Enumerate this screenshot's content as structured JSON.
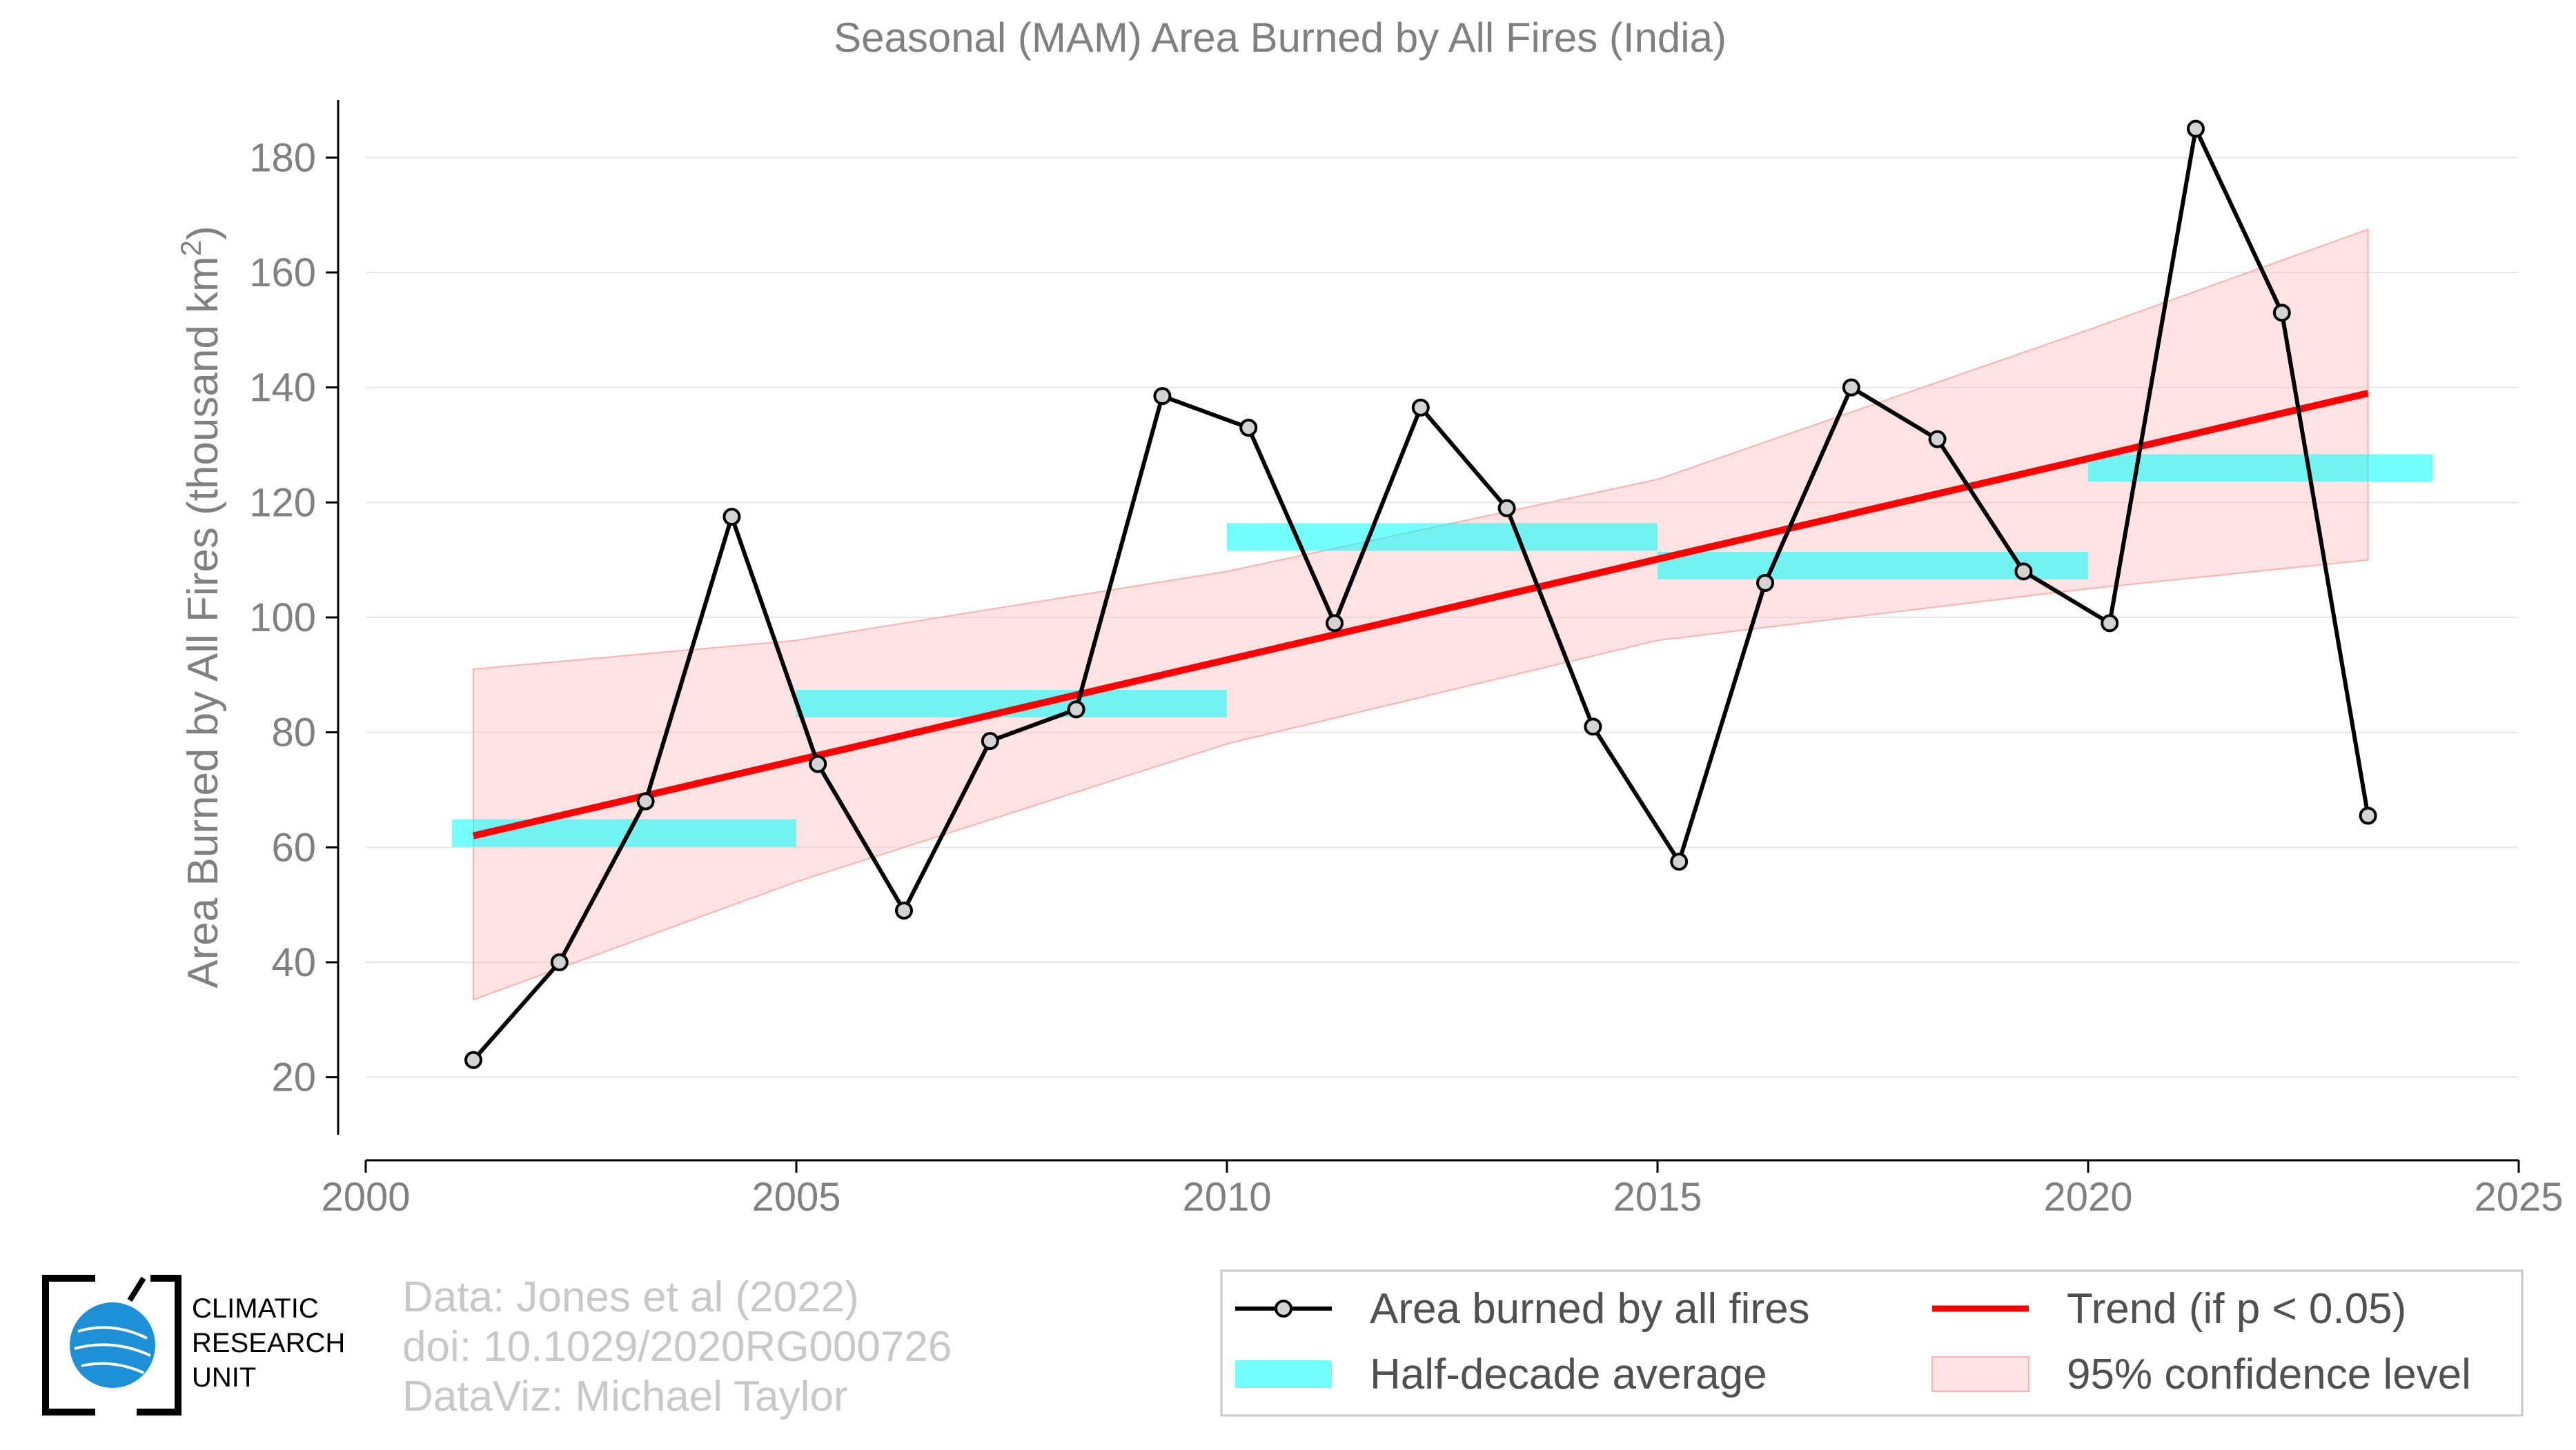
{
  "chart_data": {
    "type": "line",
    "title": "Seasonal (MAM) Area Burned by All Fires (India)",
    "ylabel_main": "Area Burned by All Fires (thousand km",
    "ylabel_sup": "2",
    "ylabel_end": ")",
    "xlim": [
      2000,
      2025
    ],
    "ylim": [
      10,
      190
    ],
    "x_ticks": [
      "2000",
      "2005",
      "2010",
      "2015",
      "2020",
      "2025"
    ],
    "y_ticks": [
      "20",
      "40",
      "60",
      "80",
      "100",
      "120",
      "140",
      "160",
      "180"
    ],
    "grid": true,
    "series": [
      {
        "name": "Area burned by all fires",
        "x": [
          2001.25,
          2002.25,
          2003.25,
          2004.25,
          2005.25,
          2006.25,
          2007.25,
          2008.25,
          2009.25,
          2010.25,
          2011.25,
          2012.25,
          2013.25,
          2014.25,
          2015.25,
          2016.25,
          2017.25,
          2018.25,
          2019.25,
          2020.25,
          2021.25,
          2022.25,
          2023.25
        ],
        "values": [
          23,
          40,
          68,
          117.5,
          74.5,
          49,
          78.5,
          84,
          138.5,
          133,
          99,
          136.5,
          119,
          81,
          57.5,
          106,
          140,
          131,
          108,
          99,
          185,
          153,
          65.5
        ]
      }
    ],
    "half_decade_average": {
      "name": "Half-decade average",
      "segments": [
        {
          "x0": 2001,
          "x1": 2005,
          "value": 62.5
        },
        {
          "x0": 2005,
          "x1": 2010,
          "value": 85
        },
        {
          "x0": 2010,
          "x1": 2015,
          "value": 114
        },
        {
          "x0": 2015,
          "x1": 2020,
          "value": 109
        },
        {
          "x0": 2020,
          "x1": 2024,
          "value": 126
        }
      ]
    },
    "trend": {
      "name": "Trend (if p < 0.05)",
      "x": [
        2001.25,
        2023.25
      ],
      "values": [
        62,
        139
      ]
    },
    "confidence": {
      "name": "95% confidence level",
      "x": [
        2001.25,
        2005,
        2010,
        2015,
        2020,
        2023.25
      ],
      "upper": [
        91,
        96,
        108,
        124,
        150,
        167.5
      ],
      "lower": [
        33.5,
        54,
        78,
        96,
        105,
        110
      ]
    },
    "legend_position": "bottom-right",
    "colors": {
      "line": "#000000",
      "marker_fill": "#d3d3d3",
      "half_decade": "#00ffff",
      "trend": "#ff0000",
      "confidence": "#ffc0c0",
      "grid": "#e6e6e6",
      "text": "#808080"
    }
  },
  "credits": {
    "line1": "Data: Jones et al (2022)",
    "line2": "doi: 10.1029/2020RG000726",
    "line3": "DataViz: Michael Taylor"
  },
  "logo": {
    "icon": "globe-icon",
    "line1": "CLIMATIC",
    "line2": "RESEARCH",
    "line3": "UNIT"
  }
}
